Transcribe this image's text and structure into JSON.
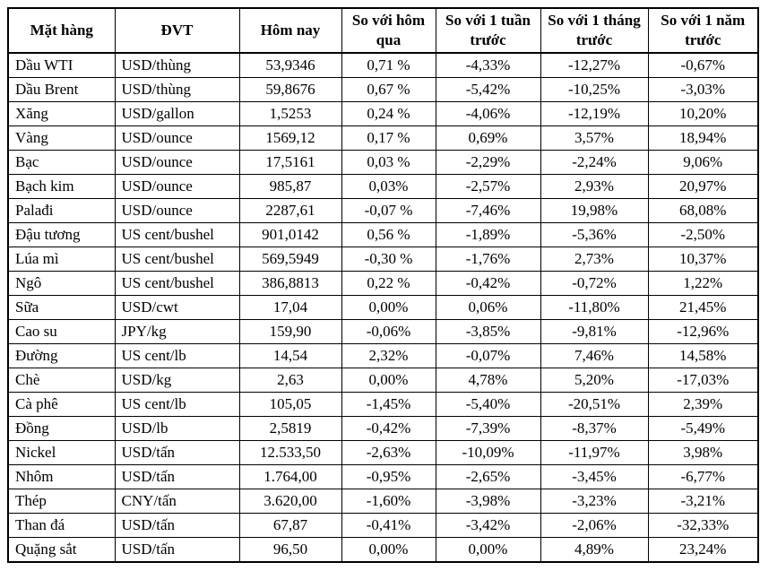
{
  "table": {
    "headers": {
      "commodity": "Mặt hàng",
      "unit": "ĐVT",
      "today": "Hôm nay",
      "vs_yesterday": "So với hôm qua",
      "vs_week": "So với 1 tuần trước",
      "vs_month": "So với 1 tháng trước",
      "vs_year": "So với 1 năm trước"
    },
    "rows": [
      {
        "commodity": "Dầu WTI",
        "unit": "USD/thùng",
        "today": "53,9346",
        "vs_yesterday": "0,71 %",
        "vs_week": "-4,33%",
        "vs_month": "-12,27%",
        "vs_year": "-0,67%"
      },
      {
        "commodity": "Dầu Brent",
        "unit": "USD/thùng",
        "today": "59,8676",
        "vs_yesterday": "0,67 %",
        "vs_week": "-5,42%",
        "vs_month": "-10,25%",
        "vs_year": "-3,03%"
      },
      {
        "commodity": "Xăng",
        "unit": "USD/gallon",
        "today": "1,5253",
        "vs_yesterday": "0,24 %",
        "vs_week": "-4,06%",
        "vs_month": "-12,19%",
        "vs_year": "10,20%"
      },
      {
        "commodity": "Vàng",
        "unit": "USD/ounce",
        "today": "1569,12",
        "vs_yesterday": "0,17 %",
        "vs_week": "0,69%",
        "vs_month": "3,57%",
        "vs_year": "18,94%"
      },
      {
        "commodity": "Bạc",
        "unit": "USD/ounce",
        "today": "17,5161",
        "vs_yesterday": "0,03 %",
        "vs_week": "-2,29%",
        "vs_month": "-2,24%",
        "vs_year": "9,06%"
      },
      {
        "commodity": "Bạch kim",
        "unit": "USD/ounce",
        "today": "985,87",
        "vs_yesterday": "0,03%",
        "vs_week": "-2,57%",
        "vs_month": "2,93%",
        "vs_year": "20,97%"
      },
      {
        "commodity": "Palađi",
        "unit": "USD/ounce",
        "today": "2287,61",
        "vs_yesterday": "-0,07 %",
        "vs_week": "-7,46%",
        "vs_month": "19,98%",
        "vs_year": "68,08%"
      },
      {
        "commodity": "Đậu tương",
        "unit": "US cent/bushel",
        "today": "901,0142",
        "vs_yesterday": "0,56 %",
        "vs_week": "-1,89%",
        "vs_month": "-5,36%",
        "vs_year": "-2,50%"
      },
      {
        "commodity": "Lúa mì",
        "unit": "US cent/bushel",
        "today": "569,5949",
        "vs_yesterday": "-0,30 %",
        "vs_week": "-1,76%",
        "vs_month": "2,73%",
        "vs_year": "10,37%"
      },
      {
        "commodity": "Ngô",
        "unit": "US cent/bushel",
        "today": "386,8813",
        "vs_yesterday": "0,22 %",
        "vs_week": "-0,42%",
        "vs_month": "-0,72%",
        "vs_year": "1,22%"
      },
      {
        "commodity": "Sữa",
        "unit": "USD/cwt",
        "today": "17,04",
        "vs_yesterday": "0,00%",
        "vs_week": "0,06%",
        "vs_month": "-11,80%",
        "vs_year": "21,45%"
      },
      {
        "commodity": "Cao su",
        "unit": "JPY/kg",
        "today": "159,90",
        "vs_yesterday": "-0,06%",
        "vs_week": "-3,85%",
        "vs_month": "-9,81%",
        "vs_year": "-12,96%"
      },
      {
        "commodity": "Đường",
        "unit": "US cent/lb",
        "today": "14,54",
        "vs_yesterday": "2,32%",
        "vs_week": "-0,07%",
        "vs_month": "7,46%",
        "vs_year": "14,58%"
      },
      {
        "commodity": "Chè",
        "unit": "USD/kg",
        "today": "2,63",
        "vs_yesterday": "0,00%",
        "vs_week": "4,78%",
        "vs_month": "5,20%",
        "vs_year": "-17,03%"
      },
      {
        "commodity": "Cà phê",
        "unit": "US cent/lb",
        "today": "105,05",
        "vs_yesterday": "-1,45%",
        "vs_week": "-5,40%",
        "vs_month": "-20,51%",
        "vs_year": "2,39%"
      },
      {
        "commodity": "Đồng",
        "unit": "USD/lb",
        "today": "2,5819",
        "vs_yesterday": "-0,42%",
        "vs_week": "-7,39%",
        "vs_month": "-8,37%",
        "vs_year": "-5,49%"
      },
      {
        "commodity": "Nickel",
        "unit": "USD/tấn",
        "today": "12.533,50",
        "vs_yesterday": "-2,63%",
        "vs_week": "-10,09%",
        "vs_month": "-11,97%",
        "vs_year": "3,98%"
      },
      {
        "commodity": "Nhôm",
        "unit": "USD/tấn",
        "today": "1.764,00",
        "vs_yesterday": "-0,95%",
        "vs_week": "-2,65%",
        "vs_month": "-3,45%",
        "vs_year": "-6,77%"
      },
      {
        "commodity": "Thép",
        "unit": "CNY/tấn",
        "today": "3.620,00",
        "vs_yesterday": "-1,60%",
        "vs_week": "-3,98%",
        "vs_month": "-3,23%",
        "vs_year": "-3,21%"
      },
      {
        "commodity": "Than đá",
        "unit": "USD/tấn",
        "today": "67,87",
        "vs_yesterday": "-0,41%",
        "vs_week": "-3,42%",
        "vs_month": "-2,06%",
        "vs_year": "-32,33%"
      },
      {
        "commodity": "Quặng sắt",
        "unit": "USD/tấn",
        "today": "96,50",
        "vs_yesterday": "0,00%",
        "vs_week": "0,00%",
        "vs_month": "4,89%",
        "vs_year": "23,24%"
      }
    ]
  }
}
